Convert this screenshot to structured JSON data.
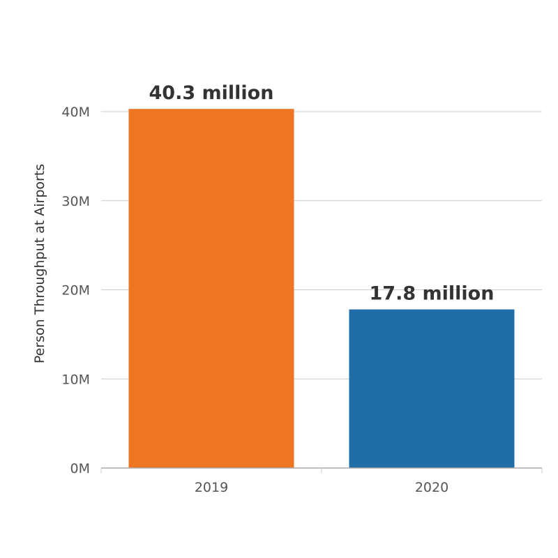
{
  "chart_data": {
    "type": "bar",
    "categories": [
      "2019",
      "2020"
    ],
    "values": [
      40300000,
      17800000
    ],
    "data_labels": [
      "40.3 million",
      "17.8 million"
    ],
    "colors": [
      "#EE7623",
      "#1F6EA8"
    ],
    "title": "",
    "xlabel": "",
    "ylabel": "Person Throughput at Airports",
    "ylim": [
      0,
      40000000
    ],
    "yticks": [
      0,
      10000000,
      20000000,
      30000000,
      40000000
    ],
    "ytick_labels": [
      "0M",
      "10M",
      "20M",
      "30M",
      "40M"
    ],
    "grid": true,
    "legend": "none"
  }
}
